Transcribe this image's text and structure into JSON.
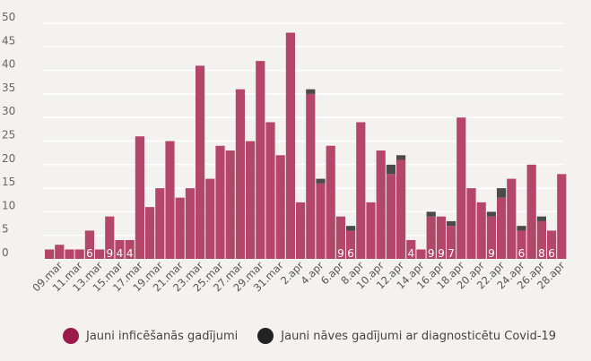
{
  "chart_data": {
    "type": "bar",
    "stacked": true,
    "ylim": [
      0,
      50
    ],
    "yticks": [
      0,
      5,
      10,
      15,
      20,
      25,
      30,
      35,
      40,
      45,
      50
    ],
    "categories": [
      "08.mar",
      "09.mar",
      "10.mar",
      "11.mar",
      "12.mar",
      "13.mar",
      "14.mar",
      "15.mar",
      "16.mar",
      "17.mar",
      "18.mar",
      "19.mar",
      "20.mar",
      "21.mar",
      "22.mar",
      "23.mar",
      "24.mar",
      "25.mar",
      "26.mar",
      "27.mar",
      "28.mar",
      "29.mar",
      "30.mar",
      "31.mar",
      "1.apr",
      "2.apr",
      "3.apr",
      "4.apr",
      "5.apr",
      "6.apr",
      "7.apr",
      "8.apr",
      "9.apr",
      "10.apr",
      "11.apr",
      "12.apr",
      "13.apr",
      "14.apr",
      "15.apr",
      "16.apr",
      "17.apr",
      "18.apr",
      "19.apr",
      "20.apr",
      "21.apr",
      "22.apr",
      "23.apr",
      "24.apr",
      "25.apr",
      "26.apr",
      "27.apr",
      "28.apr"
    ],
    "x_tick_labels": [
      "09.mar",
      "11.mar",
      "13.mar",
      "15.mar",
      "17.mar",
      "19.mar",
      "21.mar",
      "23.mar",
      "25.mar",
      "27.mar",
      "29.mar",
      "31.mar",
      "2.apr",
      "4.apr",
      "6.apr",
      "8.apr",
      "10.apr",
      "12.apr",
      "14.apr",
      "16.apr",
      "18.apr",
      "20.apr",
      "22.apr",
      "24.apr",
      "26.apr",
      "28.apr"
    ],
    "series": [
      {
        "name": "Jauni inficēšanās gadījumi",
        "color": "#b5466b",
        "values": [
          2,
          3,
          2,
          2,
          6,
          2,
          9,
          4,
          4,
          26,
          11,
          15,
          25,
          13,
          15,
          41,
          17,
          24,
          23,
          36,
          25,
          42,
          29,
          22,
          48,
          12,
          35,
          16,
          24,
          9,
          6,
          29,
          12,
          23,
          18,
          21,
          4,
          2,
          9,
          9,
          7,
          30,
          15,
          12,
          9,
          13,
          17,
          6,
          20,
          8,
          6,
          18
        ]
      },
      {
        "name": "Jauni nāves gadījumi ar diagnosticētu Covid-19",
        "color": "#4a4a4a",
        "values": [
          0,
          0,
          0,
          0,
          0,
          0,
          0,
          0,
          0,
          0,
          0,
          0,
          0,
          0,
          0,
          0,
          0,
          0,
          0,
          0,
          0,
          0,
          0,
          0,
          0,
          0,
          1,
          1,
          0,
          0,
          1,
          0,
          0,
          0,
          2,
          1,
          0,
          0,
          1,
          0,
          1,
          0,
          0,
          0,
          1,
          2,
          0,
          1,
          0,
          1,
          0,
          0
        ]
      }
    ],
    "data_labels": [
      "",
      "",
      "",
      "",
      "6",
      "",
      "9",
      "4",
      "4",
      "",
      "",
      "",
      "",
      "",
      "",
      "",
      "",
      "",
      "",
      "",
      "",
      "",
      "",
      "",
      "",
      "",
      "",
      "",
      "",
      "9",
      "6",
      "",
      "",
      "",
      "",
      "",
      "4",
      "",
      "9",
      "9",
      "7",
      "",
      "",
      "",
      "9",
      "",
      "",
      "6",
      "",
      "8",
      "6",
      ""
    ],
    "legend": [
      "Jauni inficēšanās gadījumi",
      "Jauni nāves gadījumi ar diagnosticētu Covid-19"
    ],
    "legend_position": "bottom",
    "grid": true
  },
  "colors": {
    "background": "#f4f2ef",
    "infections": "#b5466b",
    "deaths": "#4a4a4a",
    "legend_infections": "#9c1a4a",
    "legend_deaths": "#222222",
    "grid": "#ffffff"
  }
}
